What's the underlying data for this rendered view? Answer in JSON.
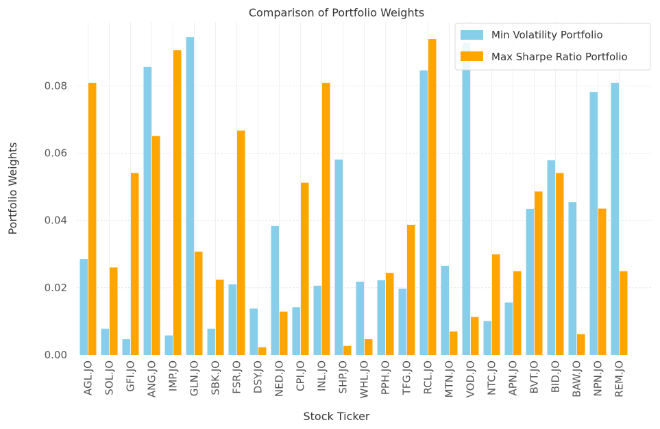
{
  "chart_data": {
    "type": "bar",
    "title": "Comparison of Portfolio Weights",
    "xlabel": "Stock Ticker",
    "ylabel": "Portfolio Weights",
    "ylim": [
      0,
      0.099
    ],
    "yticks": [
      0.0,
      0.02,
      0.04,
      0.06,
      0.08
    ],
    "ytick_labels": [
      "0.00",
      "0.02",
      "0.04",
      "0.06",
      "0.08"
    ],
    "grid": true,
    "legend_position": "top-right",
    "categories": [
      "AGL.JO",
      "SOL.JO",
      "GFI.JO",
      "ANG.JO",
      "IMP.JO",
      "GLN.JO",
      "SBK.JO",
      "FSR.JO",
      "DSY.JO",
      "NED.JO",
      "CPI.JO",
      "INL.JO",
      "SHP.JO",
      "WHL.JO",
      "PPH.JO",
      "TFG.JO",
      "RCL.JO",
      "MTN.JO",
      "VOD.JO",
      "NTC.JO",
      "APN.JO",
      "BVT.JO",
      "BID.JO",
      "BAW.JO",
      "NPN.JO",
      "REM.JO"
    ],
    "series": [
      {
        "name": "Min Volatility Portfolio",
        "color": "#87ceeb",
        "values": [
          0.0285,
          0.0078,
          0.0047,
          0.0856,
          0.0058,
          0.0945,
          0.0078,
          0.021,
          0.0138,
          0.0383,
          0.0142,
          0.0206,
          0.0581,
          0.0218,
          0.0222,
          0.0197,
          0.0846,
          0.0265,
          0.0927,
          0.0101,
          0.0156,
          0.0434,
          0.0579,
          0.0454,
          0.0782,
          0.0809
        ]
      },
      {
        "name": "Max Sharpe Ratio Portfolio",
        "color": "#ffa500",
        "values": [
          0.0809,
          0.026,
          0.0541,
          0.0651,
          0.0906,
          0.0307,
          0.0224,
          0.0667,
          0.0023,
          0.0129,
          0.0512,
          0.0809,
          0.0027,
          0.0047,
          0.0244,
          0.0387,
          0.0939,
          0.007,
          0.0113,
          0.0299,
          0.0249,
          0.0486,
          0.0541,
          0.0062,
          0.0435,
          0.0249
        ]
      }
    ]
  }
}
